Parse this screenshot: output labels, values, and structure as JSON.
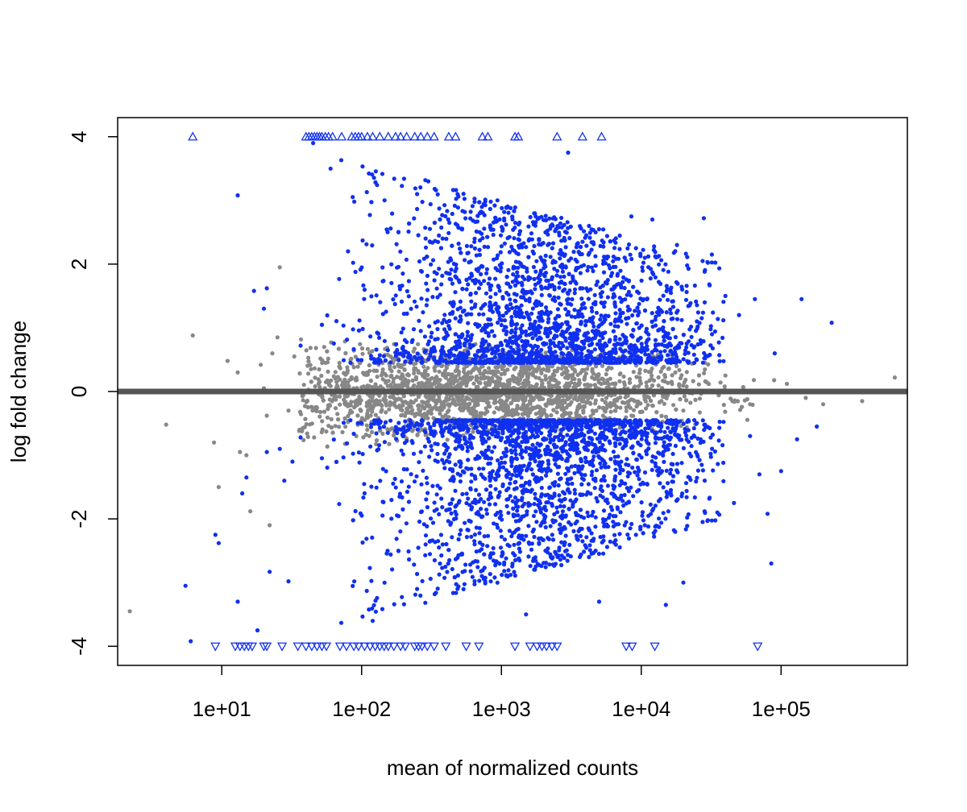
{
  "chart_data": {
    "type": "scatter",
    "title": "",
    "xlabel": "mean of normalized counts",
    "ylabel": "log fold change",
    "x_scale": "log10",
    "xlim": [
      1.8,
      800000
    ],
    "ylim": [
      -4.3,
      4.3
    ],
    "x_ticks": [
      10,
      100,
      1000,
      10000,
      100000
    ],
    "x_tick_labels": [
      "1e+01",
      "1e+02",
      "1e+03",
      "1e+04",
      "1e+05"
    ],
    "y_ticks": [
      -4,
      -2,
      0,
      2,
      4
    ],
    "y_tick_labels": [
      "-4",
      "-2",
      "0",
      "2",
      "4"
    ],
    "y_clip": [
      -4,
      4
    ],
    "reference_line_y": 0,
    "grid": false,
    "legend": "none",
    "colors": {
      "significant": "#1030f0",
      "not_significant": "#888888",
      "reference_line": "#555555",
      "axis": "#000000"
    },
    "series": [
      {
        "color_key": "not_significant",
        "marker": "dot",
        "points": [
          [
            2.2,
            -3.45
          ],
          [
            4.0,
            -0.52
          ],
          [
            6.2,
            0.88
          ],
          [
            8.8,
            -0.8
          ],
          [
            9.5,
            -1.5
          ],
          [
            11,
            0.48
          ],
          [
            13,
            0.3
          ],
          [
            13.5,
            -0.95
          ],
          [
            15,
            -1.0
          ],
          [
            16,
            -1.88
          ],
          [
            19,
            0.42
          ],
          [
            20,
            0.05
          ],
          [
            21,
            -0.38
          ],
          [
            22,
            -2.1
          ],
          [
            23,
            0.6
          ],
          [
            25,
            0.85
          ],
          [
            26,
            1.95
          ],
          [
            30,
            -0.3
          ],
          [
            33,
            0.55
          ],
          [
            36,
            -0.6
          ],
          [
            50,
            0.15
          ],
          [
            80,
            -0.2
          ],
          [
            150,
            0.25
          ],
          [
            300,
            -0.15
          ],
          [
            800,
            0.3
          ],
          [
            2500,
            -0.25
          ],
          [
            6000,
            0.2
          ],
          [
            20000,
            -0.3
          ],
          [
            40000,
            0.25
          ],
          [
            60000,
            -0.2
          ],
          [
            110000,
            0.12
          ],
          [
            150000,
            -0.1
          ],
          [
            200000,
            -0.2
          ],
          [
            380000,
            -0.15
          ],
          [
            650000,
            0.22
          ]
        ]
      },
      {
        "color_key": "significant",
        "marker": "dot",
        "points": [
          [
            5.5,
            -3.05
          ],
          [
            6.0,
            -3.92
          ],
          [
            9.0,
            -2.25
          ],
          [
            9.5,
            -2.38
          ],
          [
            13,
            3.08
          ],
          [
            13,
            -3.3
          ],
          [
            14,
            -1.6
          ],
          [
            15,
            -1.35
          ],
          [
            17,
            1.58
          ],
          [
            18,
            -3.75
          ],
          [
            20,
            1.3
          ],
          [
            21,
            -0.95
          ],
          [
            21,
            1.62
          ],
          [
            22,
            -2.83
          ],
          [
            26,
            -0.9
          ],
          [
            28,
            -1.4
          ],
          [
            30,
            -2.98
          ],
          [
            32,
            -1.1
          ],
          [
            45,
            3.9
          ],
          [
            60,
            3.5
          ],
          [
            80,
            2.2
          ],
          [
            120,
            -3.6
          ],
          [
            300,
            3.3
          ],
          [
            700,
            2.8
          ],
          [
            1500,
            -3.5
          ],
          [
            3000,
            3.75
          ],
          [
            5000,
            -3.3
          ],
          [
            8500,
            2.75
          ],
          [
            12000,
            2.7
          ],
          [
            15000,
            -3.35
          ],
          [
            18000,
            2.3
          ],
          [
            20000,
            -3.0
          ],
          [
            25000,
            1.1
          ],
          [
            28000,
            2.72
          ],
          [
            32000,
            2.15
          ],
          [
            35000,
            -1.9
          ],
          [
            40000,
            1.5
          ],
          [
            46000,
            -1.75
          ],
          [
            50000,
            1.2
          ],
          [
            60000,
            -0.7
          ],
          [
            65000,
            1.45
          ],
          [
            70000,
            -1.3
          ],
          [
            80000,
            -1.92
          ],
          [
            85000,
            -2.7
          ],
          [
            90000,
            0.6
          ],
          [
            100000,
            -1.25
          ],
          [
            130000,
            -0.75
          ],
          [
            140000,
            1.45
          ],
          [
            180000,
            -0.55
          ],
          [
            230000,
            1.08
          ]
        ]
      }
    ],
    "clipped_points": [
      {
        "color_key": "significant",
        "direction": "up",
        "y": 4,
        "x": [
          6.2,
          40,
          42,
          44,
          46,
          48,
          50,
          52,
          55,
          58,
          62,
          72,
          85,
          90,
          95,
          100,
          110,
          120,
          135,
          155,
          175,
          190,
          210,
          240,
          265,
          295,
          330,
          420,
          470,
          730,
          800,
          1250,
          1320,
          2500,
          3800,
          5200
        ]
      },
      {
        "color_key": "significant",
        "direction": "down",
        "y": -4,
        "x": [
          9,
          12.5,
          13.5,
          14.5,
          15.5,
          16.5,
          20,
          21,
          27,
          35,
          40,
          44,
          48,
          52,
          56,
          70,
          78,
          88,
          95,
          105,
          115,
          125,
          135,
          145,
          155,
          170,
          190,
          205,
          240,
          255,
          270,
          295,
          330,
          400,
          560,
          690,
          1250,
          1600,
          1800,
          1950,
          2100,
          2300,
          2500,
          7800,
          8600,
          12500,
          68000
        ]
      }
    ],
    "density_clouds": [
      {
        "color_key": "significant",
        "sign": 1,
        "count": 2200,
        "log_x_range": [
          1.55,
          4.6
        ],
        "log_x_peak": 3.35,
        "log_x_spread": 0.62,
        "y_min": 0.45,
        "y_max": 3.9
      },
      {
        "color_key": "significant",
        "sign": -1,
        "count": 2200,
        "log_x_range": [
          1.55,
          4.6
        ],
        "log_x_peak": 3.35,
        "log_x_spread": 0.62,
        "y_min": 0.45,
        "y_max": 3.9
      },
      {
        "color_key": "not_significant",
        "sign": 0,
        "count": 2600,
        "log_x_range": [
          1.55,
          5.0
        ],
        "log_x_peak": 2.9,
        "log_x_spread": 0.75,
        "y_min": 0,
        "y_max": 0.9
      }
    ]
  }
}
